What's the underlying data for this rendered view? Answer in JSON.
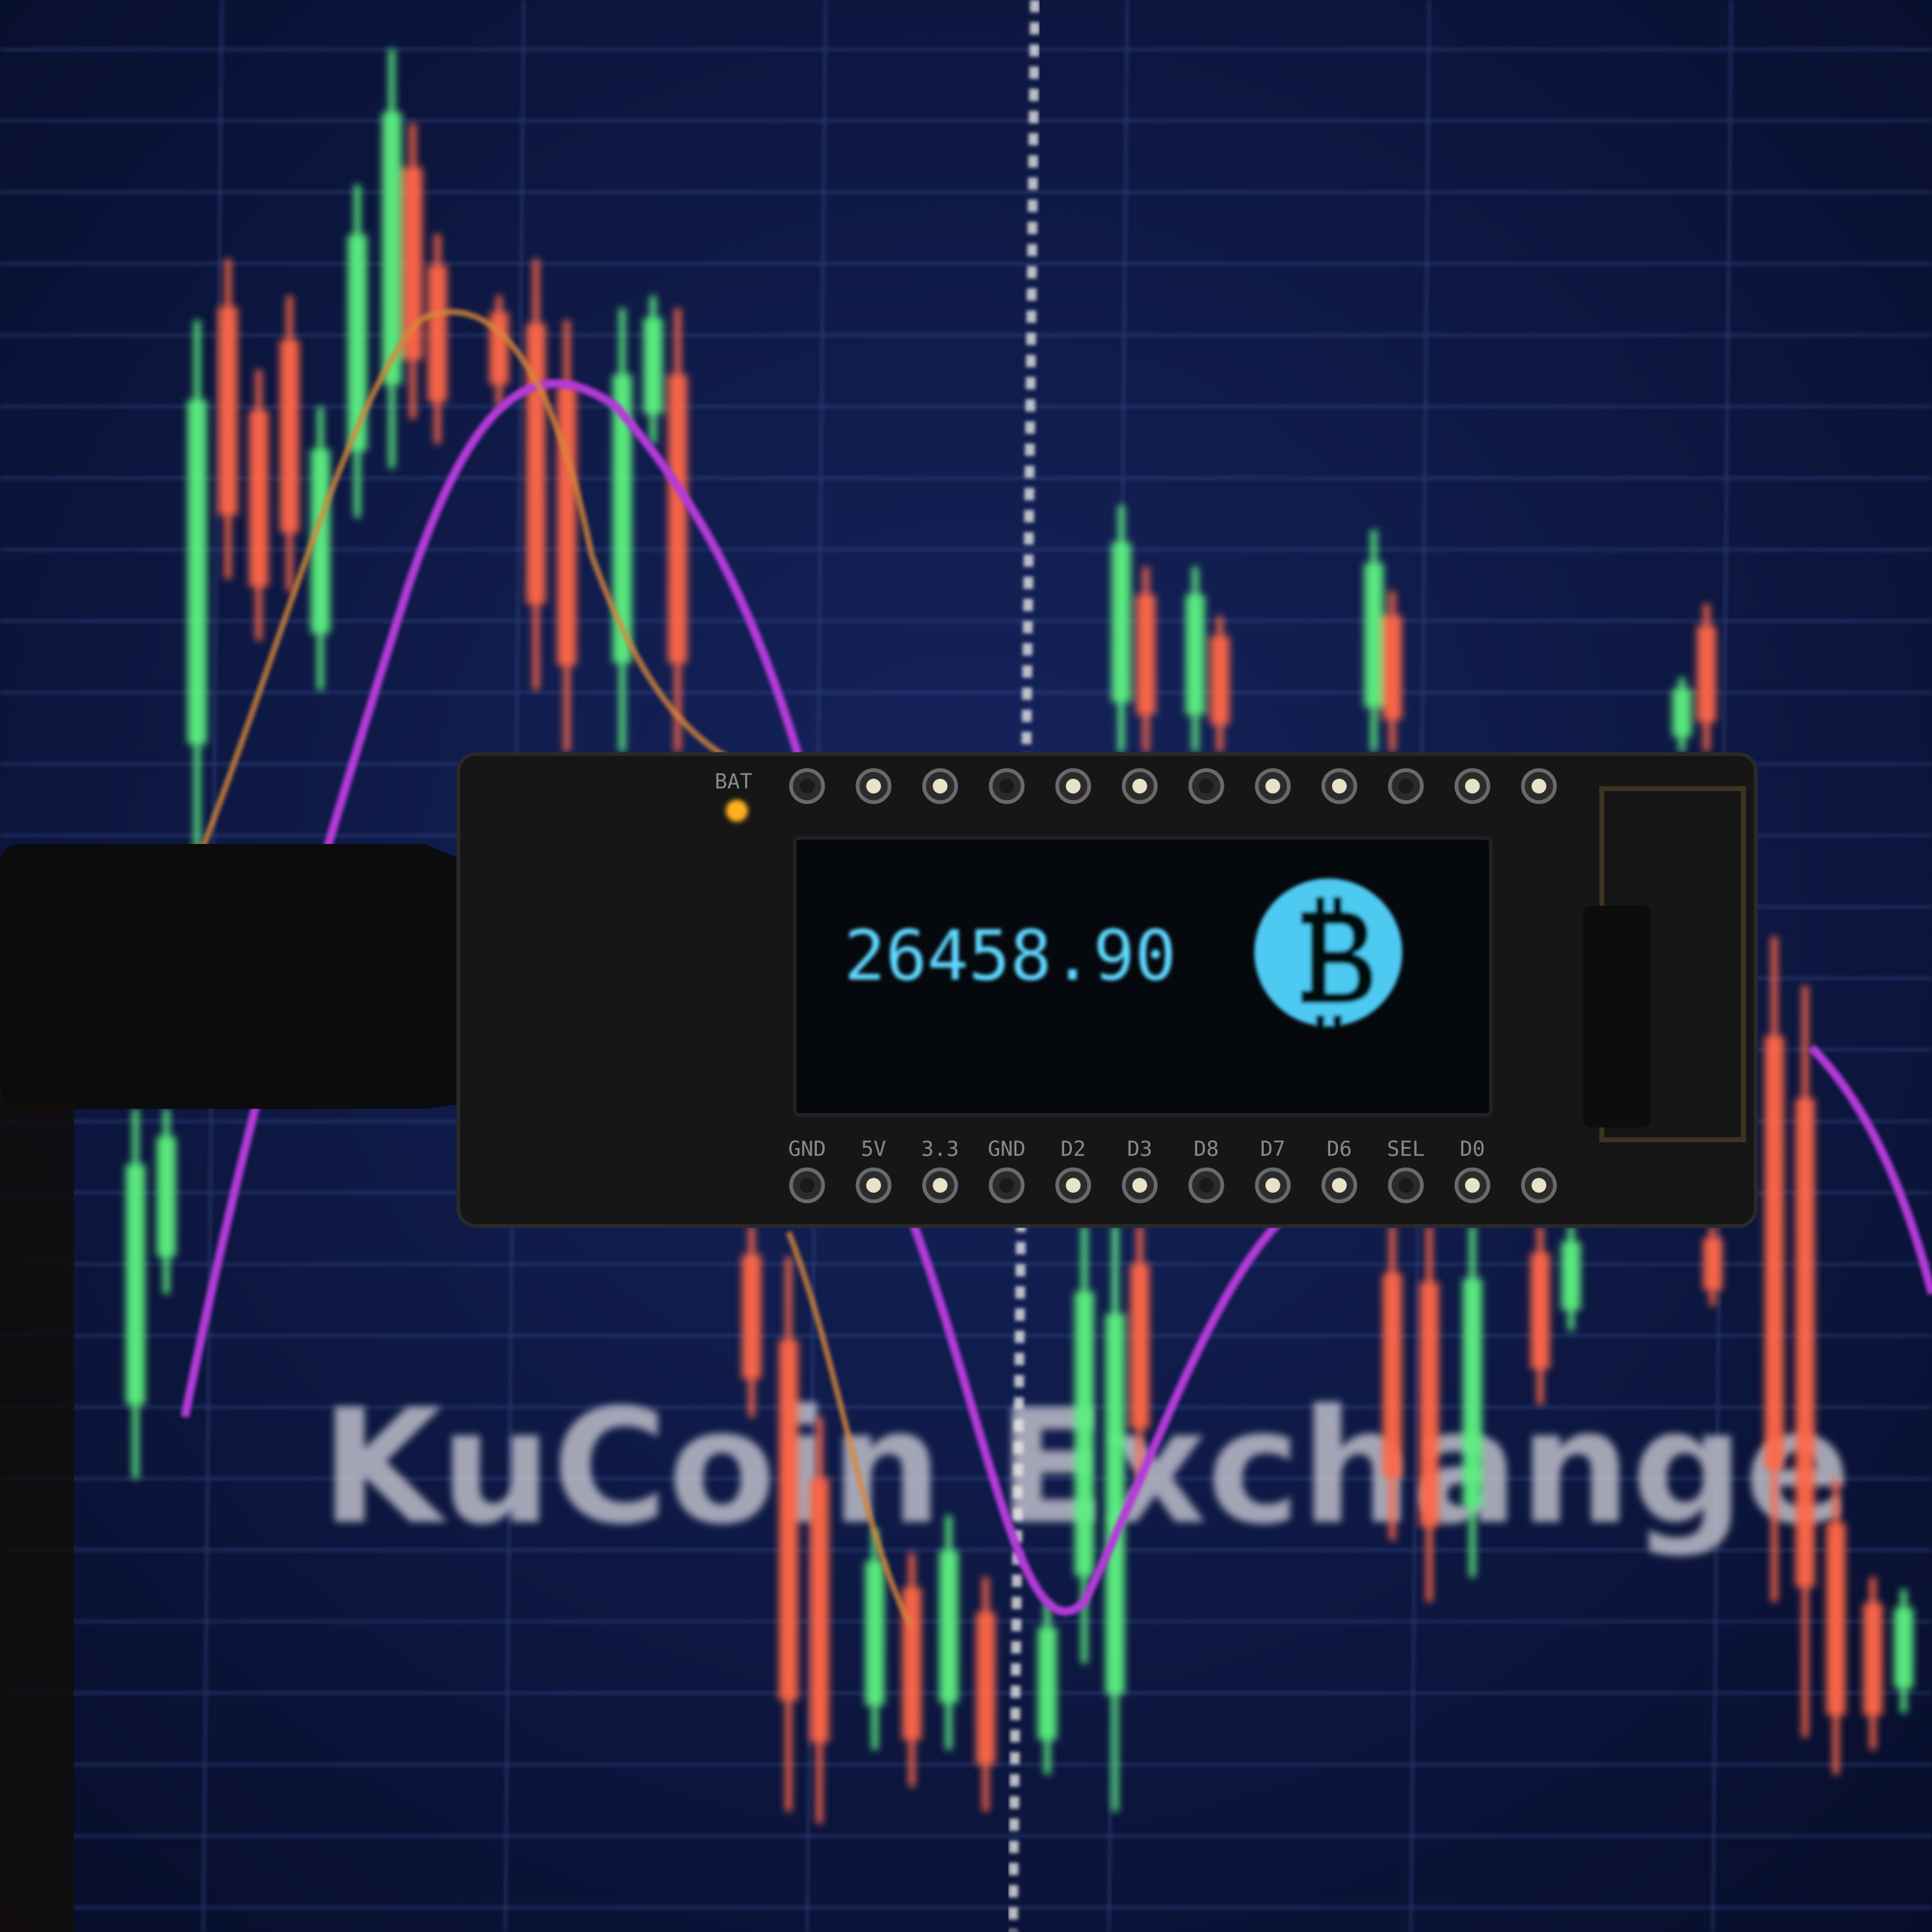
{
  "oled": {
    "price": "26458.90"
  },
  "board": {
    "bat_label": "BAT",
    "pin_labels": [
      "GND",
      "5V",
      "3.3",
      "GND",
      "D2",
      "D3",
      "D8",
      "D7",
      "D6",
      "SEL",
      "D0"
    ]
  },
  "background": {
    "watermark": "KuCoin Exchange"
  }
}
